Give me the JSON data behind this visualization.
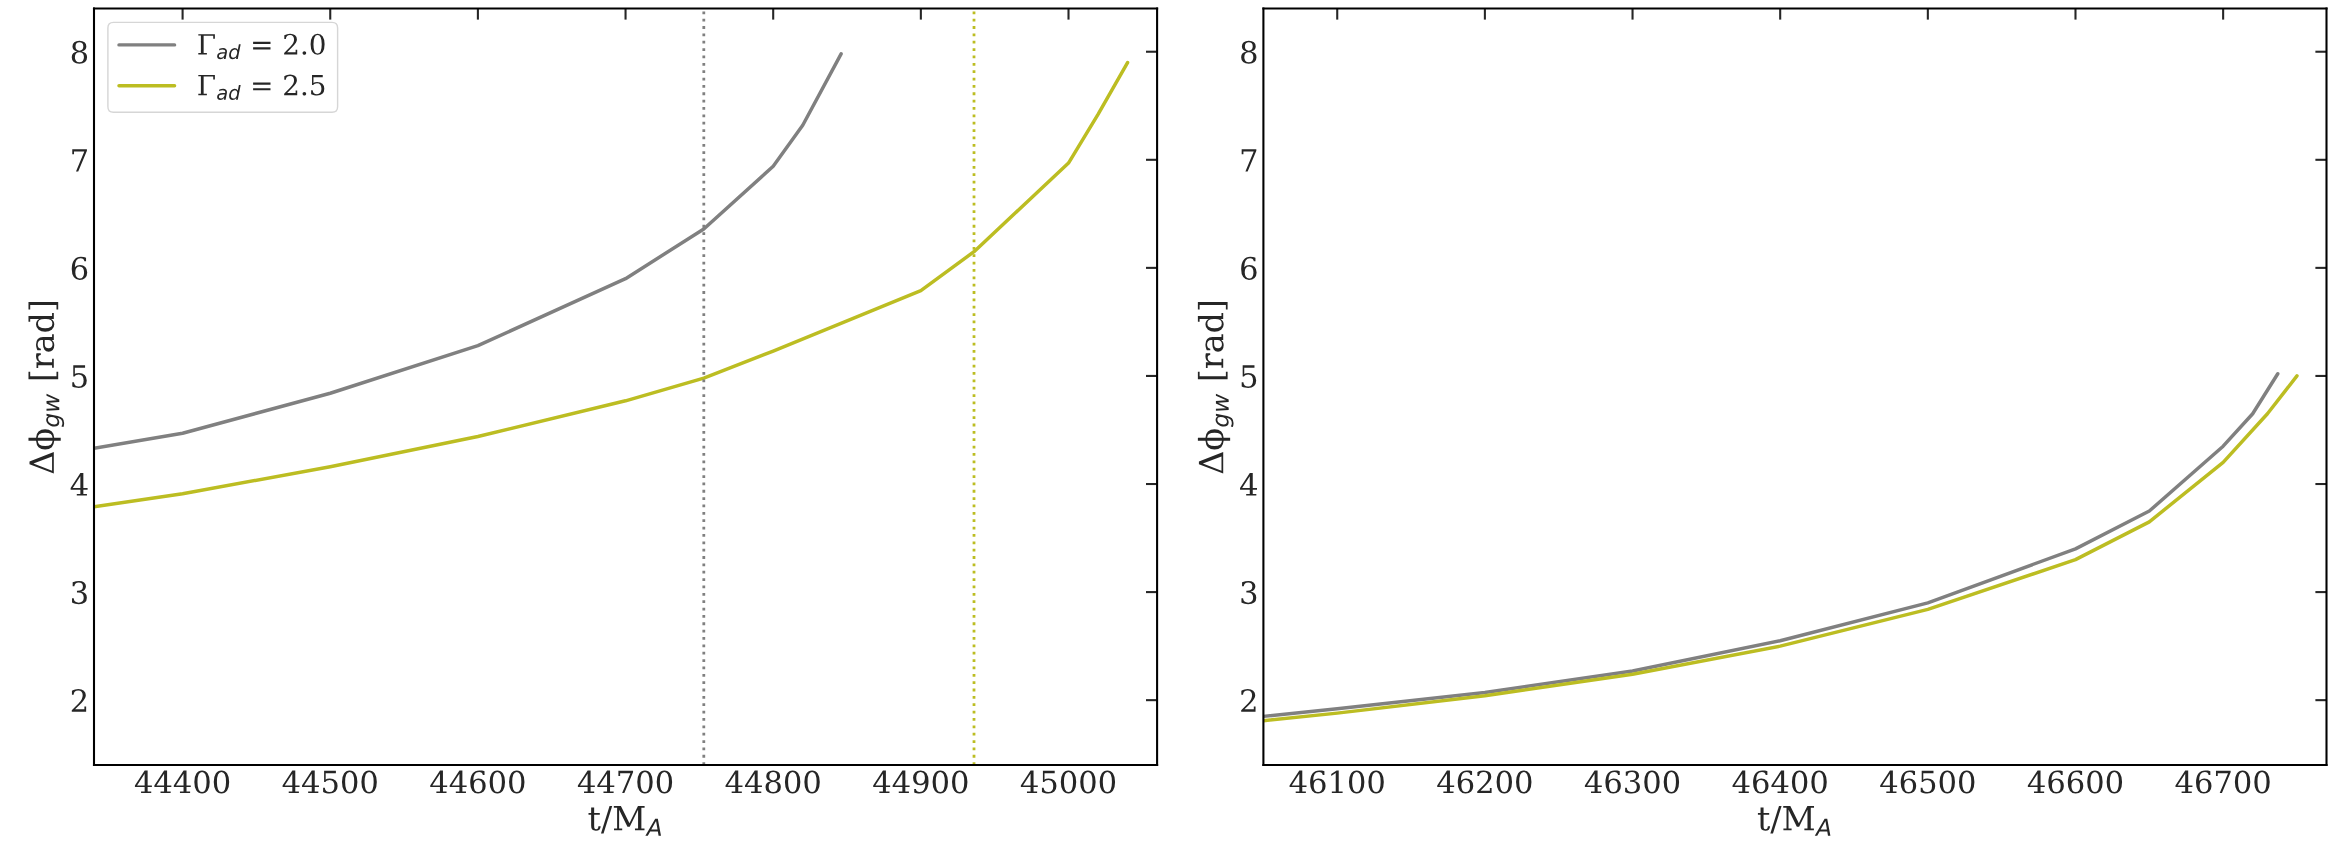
{
  "chart_data": [
    {
      "type": "line",
      "xlabel": "t/M$_{A}$",
      "ylabel": "Δϕ$_{gw}$ [rad]",
      "xlim": [
        44340,
        45060
      ],
      "xticks": [
        44400,
        44500,
        44600,
        44700,
        44800,
        44900,
        45000
      ],
      "ylim": [
        1.4,
        8.4
      ],
      "yticks": [
        2,
        3,
        4,
        5,
        6,
        7,
        8
      ],
      "grid": false,
      "legend": "top left",
      "line_style": "solid",
      "series": [
        {
          "name": "Γ$_{ad}$ = 2.0",
          "color": "#808080",
          "x": [
            44340,
            44400,
            44500,
            44600,
            44700,
            44753,
            44800,
            44820,
            44846
          ],
          "values": [
            4.33,
            4.47,
            4.84,
            5.28,
            5.9,
            6.36,
            6.94,
            7.32,
            7.98
          ]
        },
        {
          "name": "Γ$_{ad}$ = 2.5",
          "color": "#bcbd22",
          "x": [
            44340,
            44400,
            44500,
            44600,
            44700,
            44753,
            44800,
            44900,
            44936,
            45000,
            45020,
            45040
          ],
          "values": [
            3.79,
            3.91,
            4.16,
            4.44,
            4.77,
            4.98,
            5.23,
            5.79,
            6.15,
            6.97,
            7.42,
            7.9
          ]
        }
      ],
      "ref_lines": [
        {
          "axis": "x",
          "value": 44753,
          "label": null,
          "color": "#808080",
          "line_style": "dotted"
        },
        {
          "axis": "x",
          "value": 44936,
          "label": null,
          "color": "#bcbd22",
          "line_style": "dotted"
        }
      ]
    },
    {
      "type": "line",
      "xlabel": "t/M$_{A}$",
      "ylabel": "Δϕ$_{gw}$ [rad]",
      "xlim": [
        46050,
        46770
      ],
      "xticks": [
        46100,
        46200,
        46300,
        46400,
        46500,
        46600,
        46700
      ],
      "ylim": [
        1.4,
        8.4
      ],
      "yticks": [
        2,
        3,
        4,
        5,
        6,
        7,
        8
      ],
      "grid": false,
      "line_style": "solid",
      "series": [
        {
          "color": "#808080",
          "x": [
            46050,
            46100,
            46200,
            46300,
            46400,
            46500,
            46600,
            46650,
            46700,
            46720,
            46737
          ],
          "values": [
            1.85,
            1.92,
            2.07,
            2.27,
            2.55,
            2.9,
            3.4,
            3.75,
            4.35,
            4.65,
            5.02
          ]
        },
        {
          "color": "#bcbd22",
          "x": [
            46050,
            46100,
            46200,
            46300,
            46400,
            46500,
            46600,
            46650,
            46700,
            46730,
            46750
          ],
          "values": [
            1.81,
            1.88,
            2.04,
            2.24,
            2.5,
            2.84,
            3.3,
            3.65,
            4.2,
            4.65,
            5.0
          ]
        }
      ]
    }
  ]
}
